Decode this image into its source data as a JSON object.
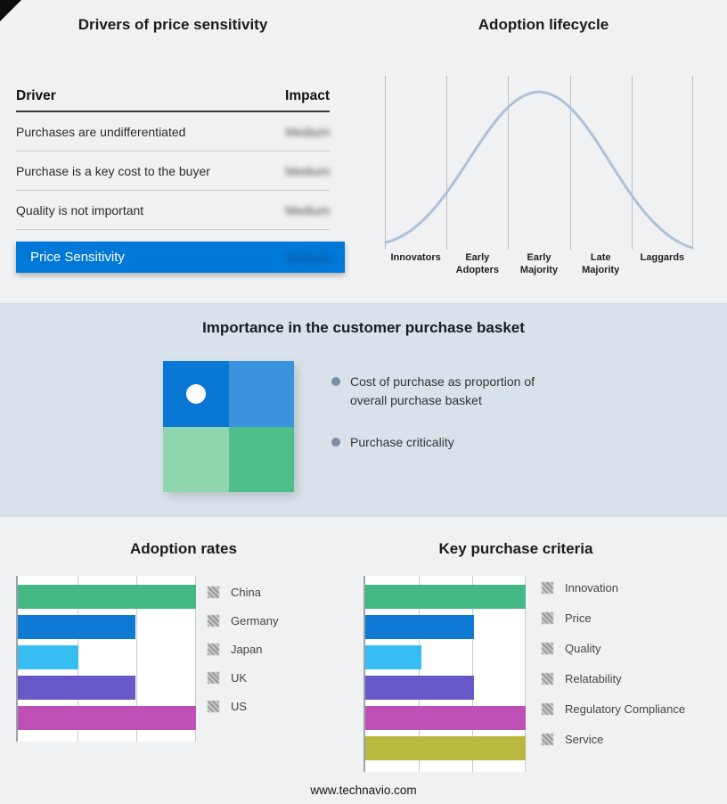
{
  "drivers": {
    "title": "Drivers of price sensitivity",
    "header": {
      "driver": "Driver",
      "impact": "Impact"
    },
    "rows": [
      {
        "driver": "Purchases are undifferentiated",
        "impact": "Medium"
      },
      {
        "driver": "Purchase is a key cost to the buyer",
        "impact": "Medium"
      },
      {
        "driver": "Quality is not important",
        "impact": "Medium"
      }
    ],
    "highlight": {
      "driver": "Price Sensitivity",
      "impact": "Medium"
    },
    "accent_color": "#0078d7"
  },
  "lifecycle": {
    "title": "Adoption lifecycle",
    "stages": [
      "Innovators",
      "Early Adopters",
      "Early Majority",
      "Late Majority",
      "Laggards"
    ],
    "curve_color": "#aec1d7"
  },
  "basket": {
    "title": "Importance in the customer purchase basket",
    "bullets": [
      "Cost of purchase as proportion of overall purchase basket",
      "Purchase criticality"
    ],
    "bullet_color": "#7d8ea3",
    "dot_color": "#ffffff",
    "band_color": "#d9e2ea",
    "quadrants": {
      "top_left": "#0878d4",
      "top_right": "#3b93dd",
      "bottom_left": "#8fd6ae",
      "bottom_right": "#4ebe8b"
    }
  },
  "footer": {
    "url": "www.technavio.com"
  },
  "chart_data": [
    {
      "type": "bar",
      "title": "Adoption rates",
      "orientation": "horizontal",
      "categories": [
        "China",
        "Germany",
        "Japan",
        "UK",
        "US"
      ],
      "values": [
        100,
        66,
        34,
        66,
        100
      ],
      "colors": [
        "#44b882",
        "#0e7ad3",
        "#36bdf2",
        "#6859c8",
        "#bf51b6"
      ],
      "xlim": [
        0,
        100
      ],
      "grid": true,
      "legend_position": "right"
    },
    {
      "type": "bar",
      "title": "Key purchase criteria",
      "orientation": "horizontal",
      "categories": [
        "Innovation",
        "Price",
        "Quality",
        "Relatability",
        "Regulatory Compliance",
        "Service"
      ],
      "values": [
        100,
        68,
        35,
        68,
        100,
        100
      ],
      "colors": [
        "#44b882",
        "#0e7ad3",
        "#36bdf2",
        "#6859c8",
        "#bf51b6",
        "#b8b83e"
      ],
      "xlim": [
        0,
        100
      ],
      "grid": true,
      "legend_position": "right"
    },
    {
      "type": "line",
      "title": "Adoption lifecycle",
      "x_categories": [
        "Innovators",
        "Early Adopters",
        "Early Majority",
        "Late Majority",
        "Laggards"
      ],
      "shape": "bell-curve",
      "peak_stage": "Early Majority",
      "grid": true
    }
  ]
}
